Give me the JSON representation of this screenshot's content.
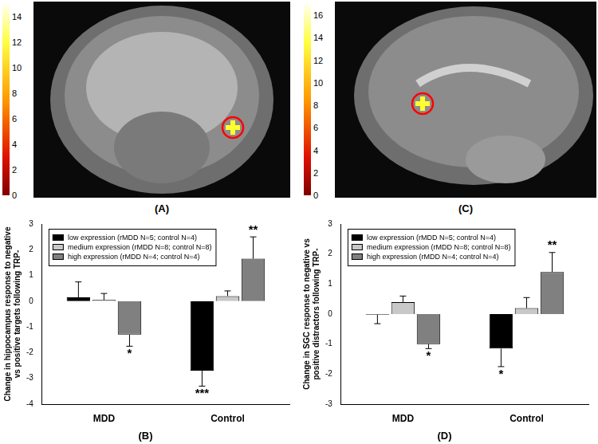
{
  "panels": [
    {
      "label": "(A)",
      "colorbar": {
        "range": [
          0,
          15
        ],
        "ticks": [
          0,
          2,
          4,
          6,
          8,
          10,
          12,
          14
        ]
      }
    },
    {
      "label": "(C)",
      "colorbar": {
        "range": [
          0,
          17
        ],
        "ticks": [
          0,
          2,
          4,
          6,
          8,
          10,
          12,
          14,
          16
        ]
      }
    }
  ],
  "chart_data": [
    {
      "type": "bar",
      "title": "(B)",
      "y_label": "Change in hippocampus response to negative vs positive targets following TRP-",
      "categories": [
        "MDD",
        "Control"
      ],
      "series": [
        {
          "name": "low expression (rMDD N=5; control N=4)",
          "color": "#000000",
          "values": [
            0.15,
            -2.7
          ],
          "errors": [
            0.6,
            0.6
          ],
          "significance": [
            null,
            "***"
          ]
        },
        {
          "name": "medium expression (rMDD N=8; control N=8)",
          "color": "#c8c8c8",
          "values": [
            0.05,
            0.2
          ],
          "errors": [
            0.25,
            0.2
          ],
          "significance": [
            null,
            null
          ]
        },
        {
          "name": "high expression (rMDD N=4; control N=4)",
          "color": "#808080",
          "values": [
            -1.3,
            1.65
          ],
          "errors": [
            0.45,
            0.85
          ],
          "significance": [
            "*",
            "**"
          ]
        }
      ],
      "ylim": [
        -4,
        3
      ],
      "yticks": [
        -4,
        -3,
        -2,
        -1,
        0,
        1,
        2,
        3
      ],
      "grid": false,
      "legend": "upper left"
    },
    {
      "type": "bar",
      "title": "(D)",
      "y_label": "Change in SGC response to negative vs positive distractors following TRP-",
      "categories": [
        "MDD",
        "Control"
      ],
      "series": [
        {
          "name": "low expression (rMDD N=5; control N=4)",
          "color": "#000000",
          "values": [
            -0.02,
            -1.15
          ],
          "errors": [
            0.3,
            0.6
          ],
          "significance": [
            null,
            "*"
          ]
        },
        {
          "name": "medium expression (rMDD N=8; control N=8)",
          "color": "#c8c8c8",
          "values": [
            0.4,
            0.2
          ],
          "errors": [
            0.2,
            0.35
          ],
          "significance": [
            null,
            null
          ]
        },
        {
          "name": "high expression (rMDD N=4; control N=4)",
          "color": "#808080",
          "values": [
            -1.0,
            1.4
          ],
          "errors": [
            0.15,
            0.65
          ],
          "significance": [
            "*",
            "**"
          ]
        }
      ],
      "ylim": [
        -3,
        3
      ],
      "yticks": [
        -3,
        -2,
        -1,
        0,
        1,
        2,
        3
      ],
      "grid": false,
      "legend": "upper left"
    }
  ]
}
